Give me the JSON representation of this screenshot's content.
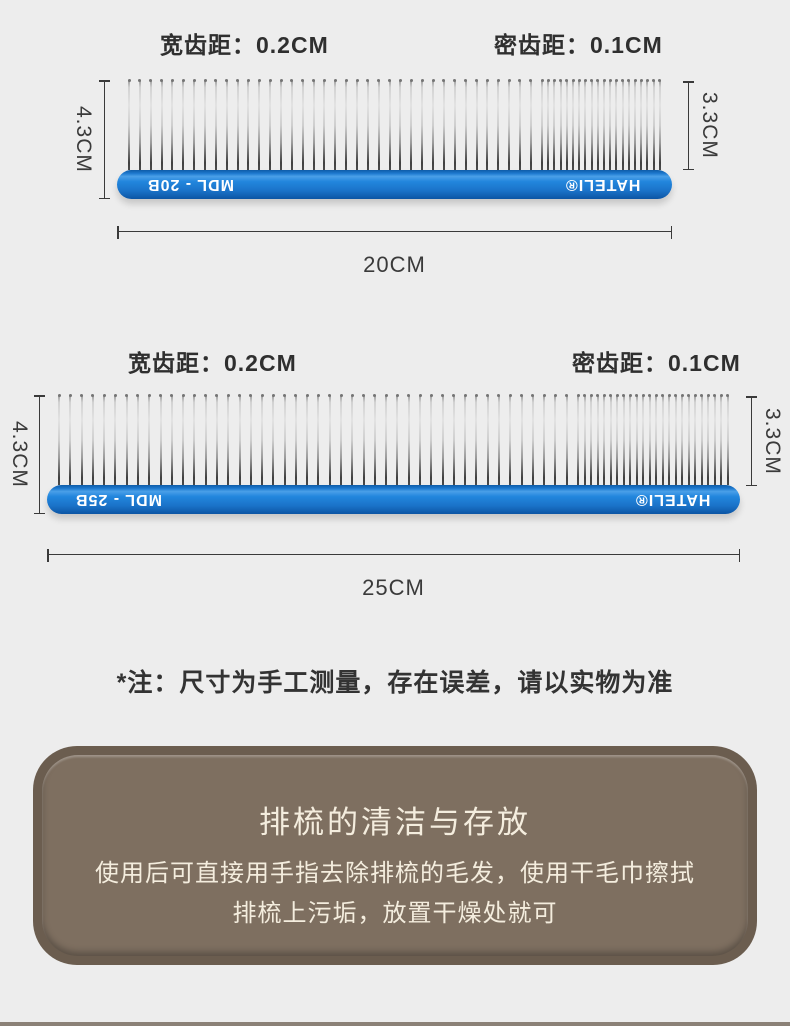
{
  "colors": {
    "page-bg": "#ededed",
    "dim": "#3a3a3a",
    "label-text": "#2f2f2f",
    "handle-blue": "#1b76cf",
    "handle-blue-dark": "#0c55a4",
    "handle-blue-light": "#4aa0e8",
    "handle-text": "#ffffff",
    "panel-rim": "#6b5d4f",
    "panel-bg": "#7e6f60",
    "panel-text": "#f4edde",
    "bottom-strip": "#8b8177"
  },
  "combs": [
    {
      "wide_pitch_label": "宽齿距：0.2CM",
      "dense_pitch_label": "密齿距：0.1CM",
      "total_height_label": "4.3CM",
      "teeth_height_label": "3.3CM",
      "length_label": "20CM",
      "model_text": "MDL - 20B",
      "brand_text": "HATELI®",
      "wide_teeth_count": 38,
      "dense_teeth_count": 20
    },
    {
      "wide_pitch_label": "宽齿距：0.2CM",
      "dense_pitch_label": "密齿距：0.1CM",
      "total_height_label": "4.3CM",
      "teeth_height_label": "3.3CM",
      "length_label": "25CM",
      "model_text": "MDL - 25B",
      "brand_text": "HATELI®",
      "wide_teeth_count": 46,
      "dense_teeth_count": 24
    }
  ],
  "note": "*注：尺寸为手工测量，存在误差，请以实物为准",
  "care_panel": {
    "title": "排梳的清洁与存放",
    "body_line1": "使用后可直接用手指去除排梳的毛发，使用干毛巾擦拭",
    "body_line2": "排梳上污垢，放置干燥处就可"
  }
}
